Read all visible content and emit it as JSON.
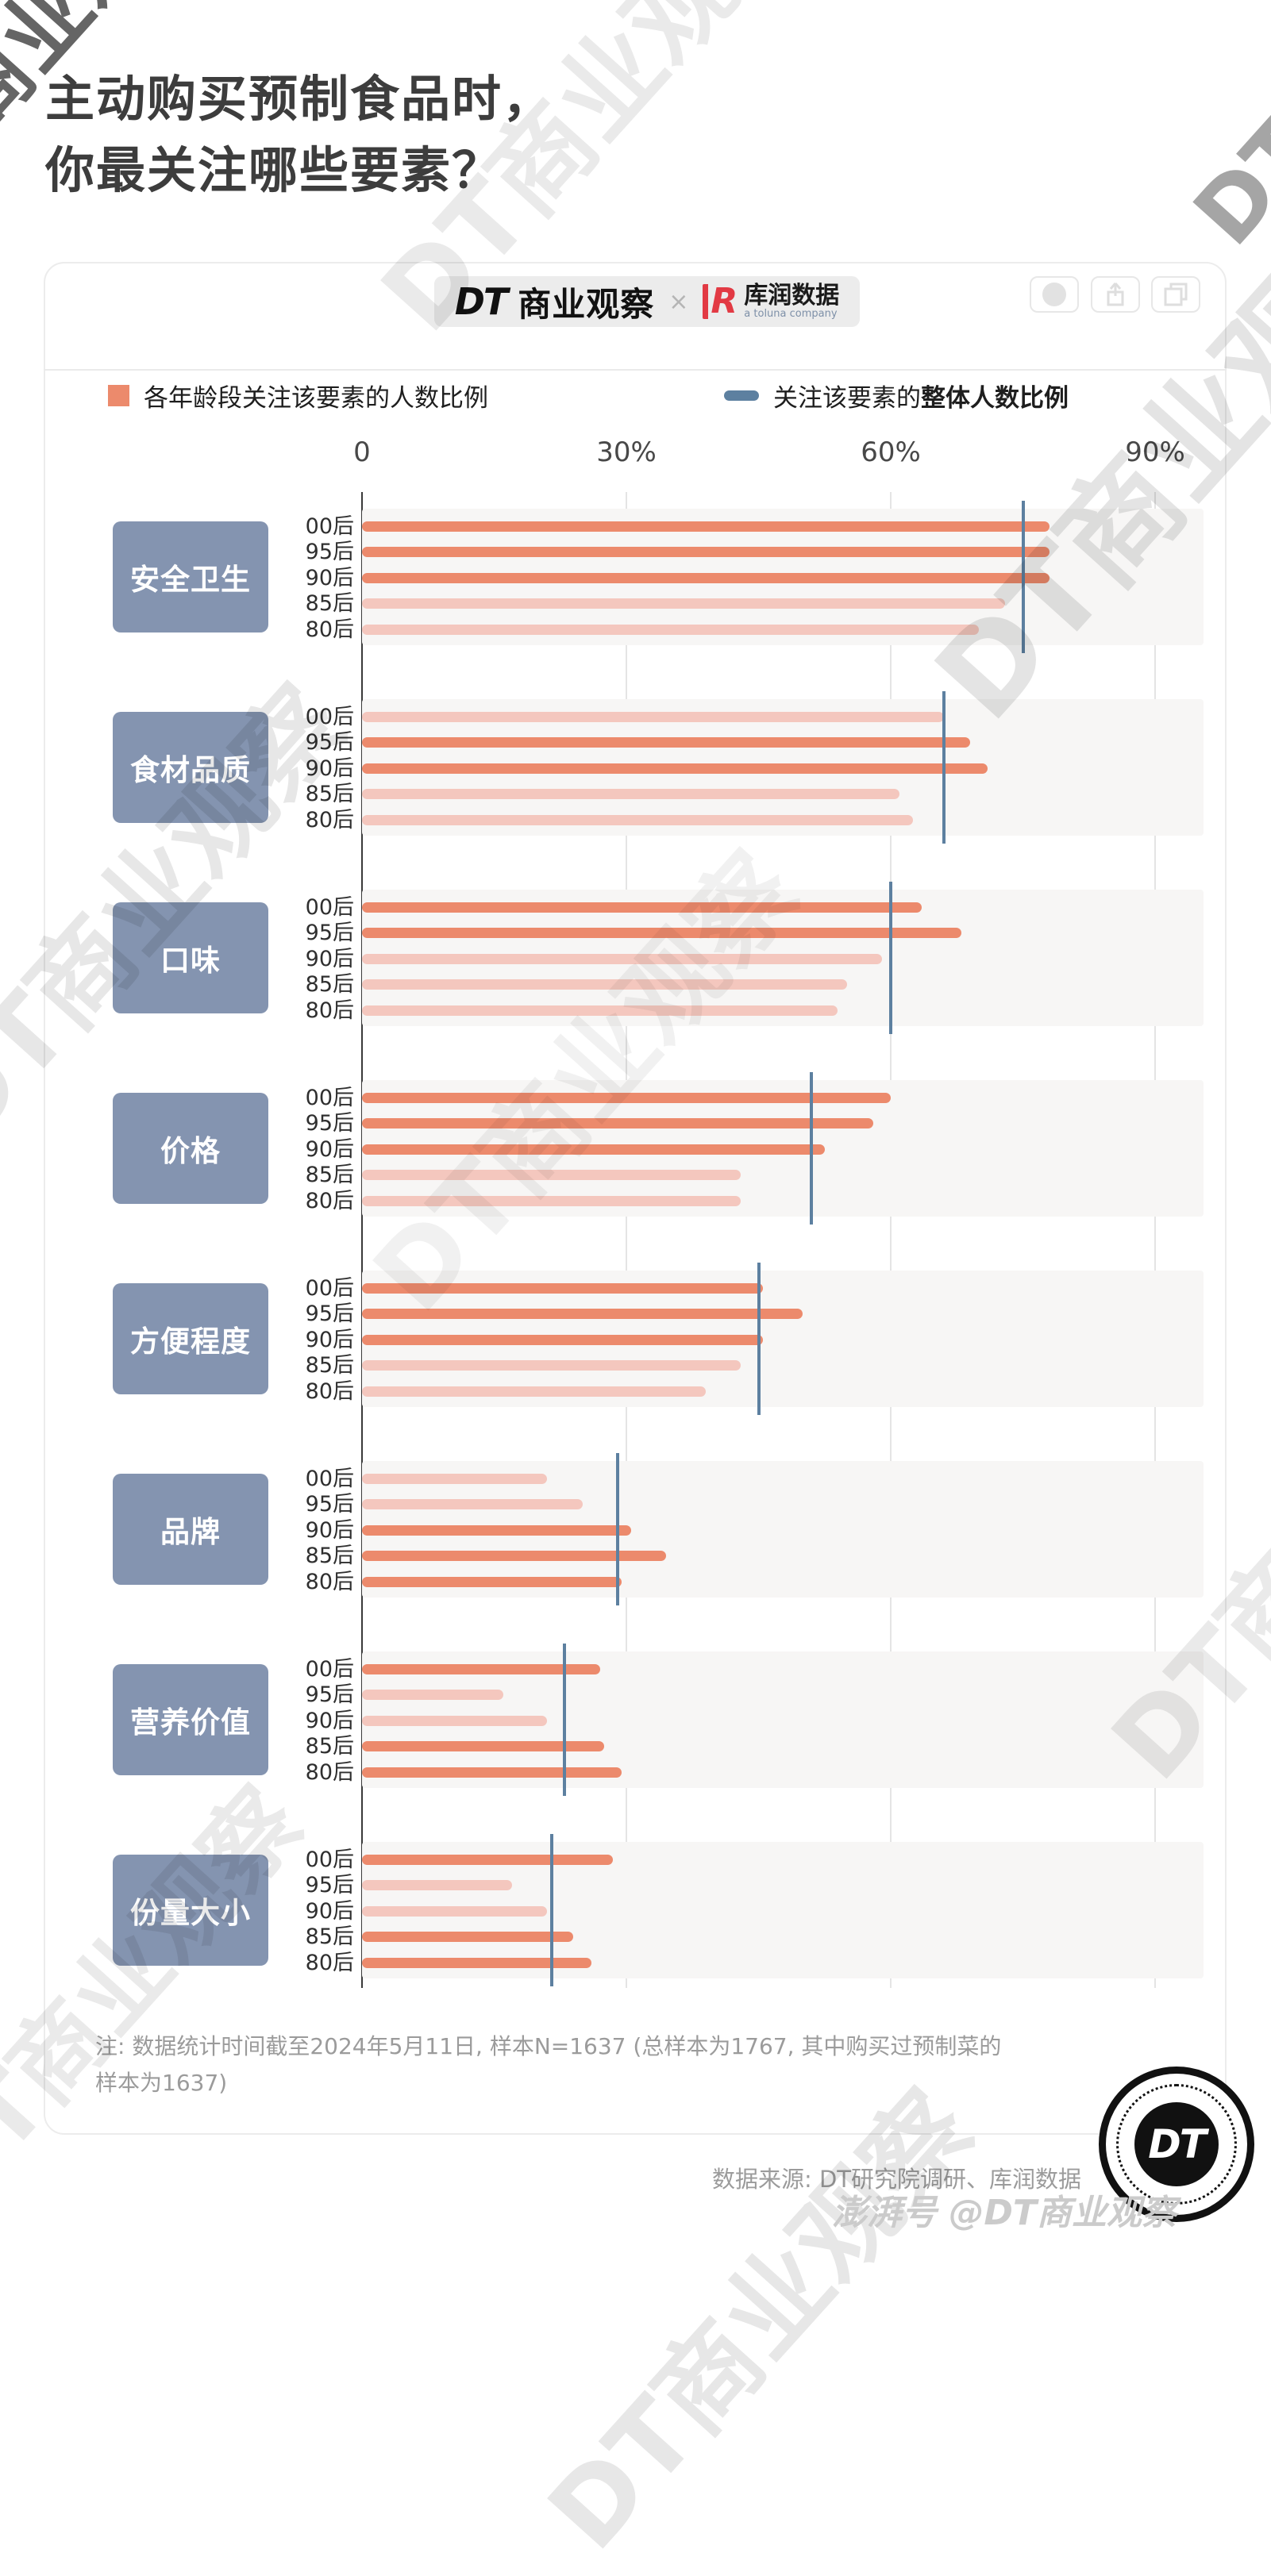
{
  "page": {
    "title_line1": "主动购买预制食品时，",
    "title_line2": "你最关注哪些要素？",
    "watermark_text": "DT商业观察",
    "paihao_watermark": "澎湃号 @DT商业观察",
    "note_line1": "注: 数据统计时间截至2024年5月11日, 样本N=1637 (总样本为1767, 其中购买过预制菜的",
    "note_line2": "样本为1637)",
    "source": "数据来源: DT研究院调研、库润数据"
  },
  "window": {
    "controls_left": [
      "close-icon",
      "minimize-icon",
      "slash-icon"
    ],
    "controls_right": [
      "record-icon",
      "share-icon",
      "copy-icon"
    ],
    "close_glyph": "✕",
    "minimize_glyph": "─",
    "brand_dt_mark": "DT",
    "brand_dt_name": "商业观察",
    "cross": "×",
    "kr_mark": "R",
    "kr_name": "库润数据",
    "kr_sub": "a toluna company",
    "badge_text": "DT"
  },
  "legend": {
    "bars_label": "各年龄段关注该要素的人数比例",
    "line_label_normal": "关注该要素的",
    "line_label_bold": "整体人数比例"
  },
  "axis": {
    "ticks": [
      "0",
      "30%",
      "60%",
      "90%"
    ]
  },
  "chart_data": {
    "type": "bar",
    "orientation": "horizontal",
    "unit": "%",
    "xlim": [
      0,
      90
    ],
    "x_ticks": [
      0,
      30,
      60,
      90
    ],
    "grid": "vertical",
    "age_groups": [
      "00后",
      "95后",
      "90后",
      "85后",
      "80后"
    ],
    "series_note": "values = percent of each age group attending to the factor; overall = percent of all respondents; muted bars are drawn in the lighter color",
    "categories": [
      {
        "label": "安全卫生",
        "values": [
          78,
          78,
          78,
          73,
          70
        ],
        "muted": [
          false,
          false,
          false,
          true,
          true
        ],
        "overall": 75
      },
      {
        "label": "食材品质",
        "values": [
          66,
          69,
          71,
          61,
          62.5
        ],
        "muted": [
          true,
          false,
          false,
          true,
          true
        ],
        "overall": 66
      },
      {
        "label": "口味",
        "values": [
          63.5,
          68,
          59,
          55,
          54
        ],
        "muted": [
          false,
          false,
          true,
          true,
          true
        ],
        "overall": 60
      },
      {
        "label": "价格",
        "values": [
          60,
          58,
          52.5,
          43,
          43
        ],
        "muted": [
          false,
          false,
          false,
          true,
          true
        ],
        "overall": 51
      },
      {
        "label": "方便程度",
        "values": [
          45.5,
          50,
          45.5,
          43,
          39
        ],
        "muted": [
          false,
          false,
          false,
          true,
          true
        ],
        "overall": 45
      },
      {
        "label": "品牌",
        "values": [
          21,
          25,
          30.5,
          34.5,
          29.5
        ],
        "muted": [
          true,
          true,
          false,
          false,
          false
        ],
        "overall": 29
      },
      {
        "label": "营养价值",
        "values": [
          27,
          16,
          21,
          27.5,
          29.5
        ],
        "muted": [
          false,
          true,
          true,
          false,
          false
        ],
        "overall": 23
      },
      {
        "label": "份量大小",
        "values": [
          28.5,
          17,
          21,
          24,
          26
        ],
        "muted": [
          false,
          true,
          true,
          false,
          false
        ],
        "overall": 21.5
      }
    ],
    "colors": {
      "bar": "#ec8a6c",
      "bar_muted": "#f4c7be",
      "overall_line": "#5d80a0",
      "label_box": "#8494b0",
      "kr_red": "#e23a44"
    }
  }
}
